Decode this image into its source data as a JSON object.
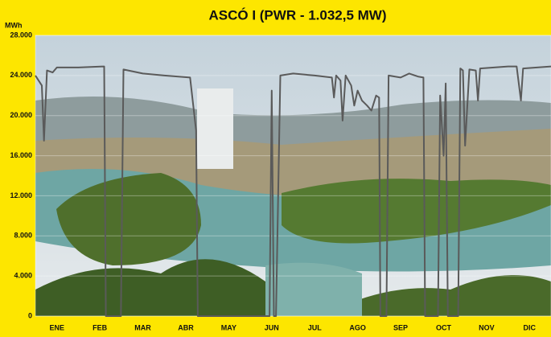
{
  "chart_data": {
    "type": "line",
    "title": "ASCÓ I (PWR - 1.032,5 MW)",
    "y_label": "MWh",
    "xlim": [
      0,
      12
    ],
    "xticks": [
      {
        "value": 0.5,
        "label": "ENE"
      },
      {
        "value": 1.5,
        "label": "FEB"
      },
      {
        "value": 2.5,
        "label": "MAR"
      },
      {
        "value": 3.5,
        "label": "ABR"
      },
      {
        "value": 4.5,
        "label": "MAY"
      },
      {
        "value": 5.5,
        "label": "JUN"
      },
      {
        "value": 6.5,
        "label": "JUL"
      },
      {
        "value": 7.5,
        "label": "AGO"
      },
      {
        "value": 8.5,
        "label": "SEP"
      },
      {
        "value": 9.5,
        "label": "OCT"
      },
      {
        "value": 10.5,
        "label": "NOV"
      },
      {
        "value": 11.5,
        "label": "DIC"
      }
    ],
    "ylim": [
      0,
      28000
    ],
    "yticks": [
      {
        "value": 0,
        "label": "0"
      },
      {
        "value": 4000,
        "label": "4.000"
      },
      {
        "value": 8000,
        "label": "8.000"
      },
      {
        "value": 12000,
        "label": "12.000"
      },
      {
        "value": 16000,
        "label": "16.000"
      },
      {
        "value": 20000,
        "label": "20.000"
      },
      {
        "value": 24000,
        "label": "24.000"
      },
      {
        "value": 28000,
        "label": "28.000"
      }
    ],
    "grid": true,
    "series": [
      {
        "color": "#5a5a5a",
        "x": [
          0,
          0.15,
          0.2,
          0.27,
          0.4,
          0.5,
          1.0,
          1.6,
          1.64,
          1.99,
          2.05,
          2.5,
          3.0,
          3.6,
          3.74,
          3.78,
          5.45,
          5.5,
          5.55,
          5.6,
          5.7,
          6.0,
          6.5,
          6.9,
          6.95,
          7.0,
          7.1,
          7.15,
          7.22,
          7.35,
          7.42,
          7.5,
          7.6,
          7.72,
          7.82,
          7.93,
          8.0,
          8.03,
          8.17,
          8.22,
          8.5,
          8.7,
          8.9,
          9.03,
          9.07,
          9.37,
          9.42,
          9.5,
          9.55,
          9.6,
          9.84,
          9.89,
          9.95,
          10.0,
          10.1,
          10.25,
          10.3,
          10.35,
          11.0,
          11.2,
          11.3,
          11.35,
          12
        ],
        "values": [
          24000,
          23000,
          17500,
          24500,
          24300,
          24800,
          24800,
          24900,
          0,
          0,
          24600,
          24200,
          24000,
          23800,
          18500,
          0,
          0,
          22500,
          0,
          0,
          24000,
          24200,
          24000,
          23800,
          21800,
          24000,
          23500,
          19500,
          24000,
          23000,
          21000,
          22500,
          21500,
          21000,
          20500,
          22000,
          21800,
          0,
          0,
          24000,
          23800,
          24200,
          23900,
          23800,
          0,
          0,
          22000,
          16000,
          23200,
          0,
          0,
          24700,
          24500,
          17000,
          24600,
          24500,
          21500,
          24700,
          24900,
          24900,
          21500,
          24700,
          24900
        ]
      }
    ]
  }
}
